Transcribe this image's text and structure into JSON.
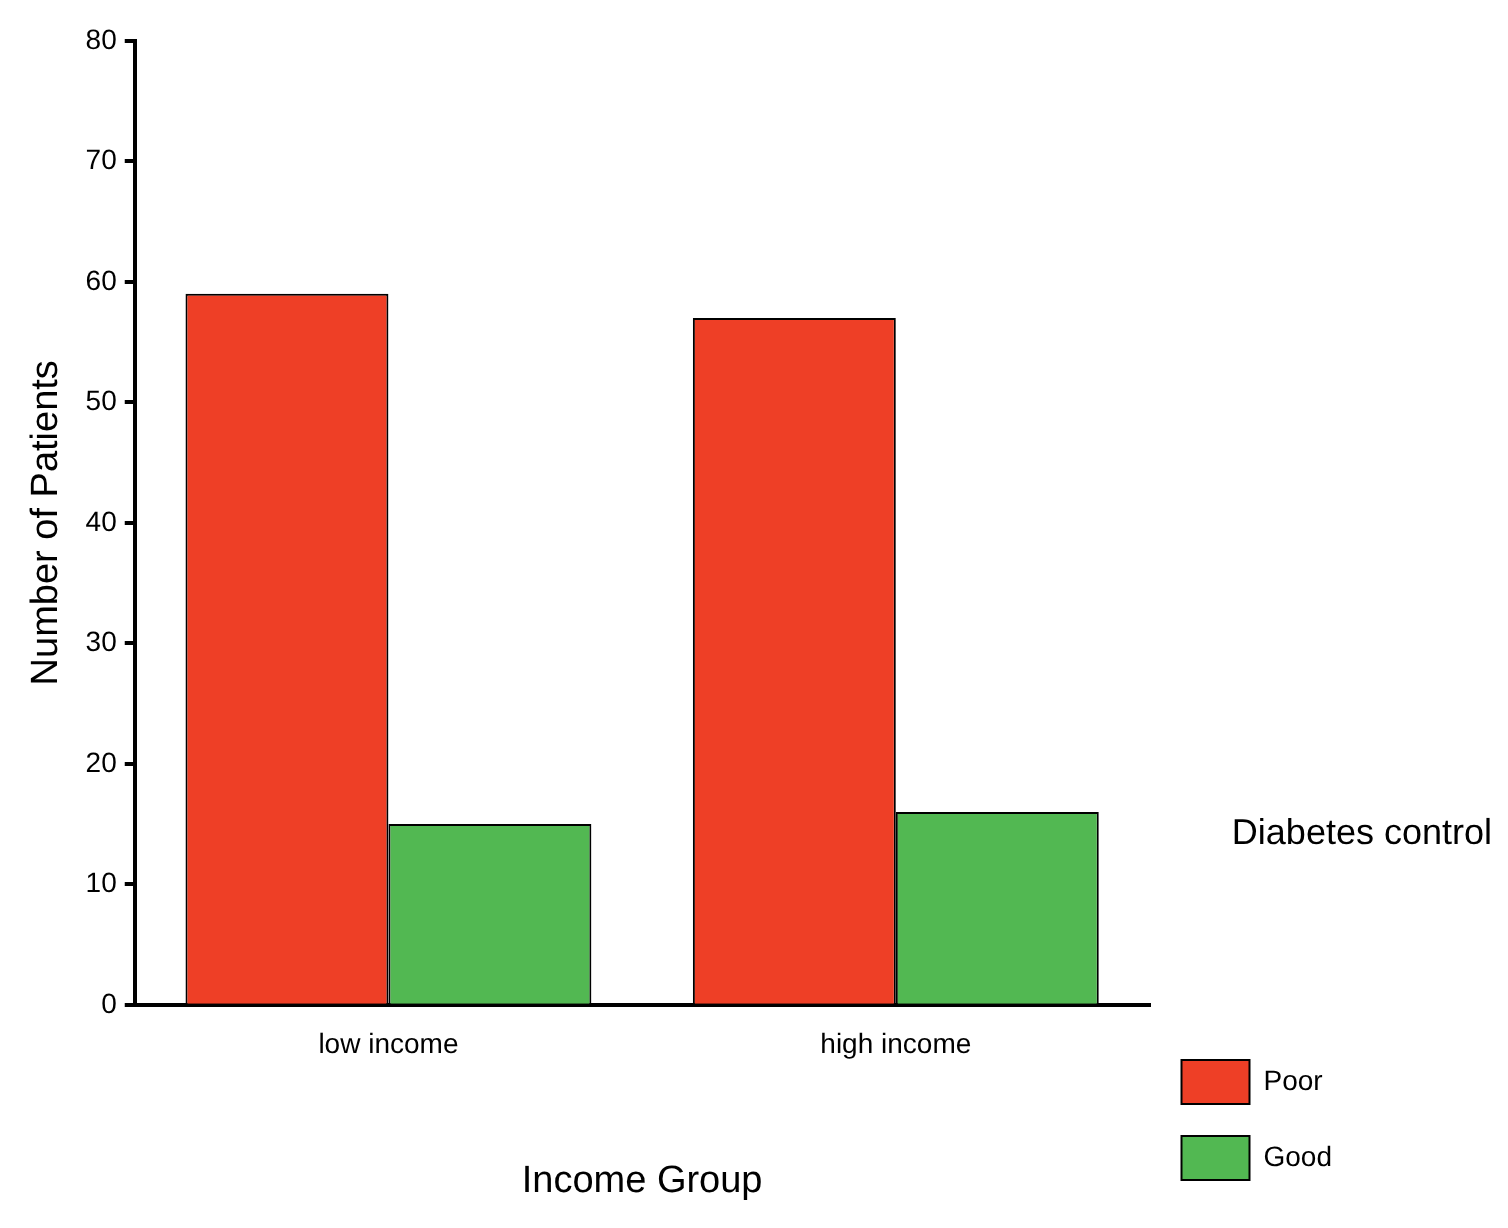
{
  "chart_data": {
    "type": "bar",
    "xlabel": "Income Group",
    "ylabel": "Number of Patients",
    "legend_title": "Diabetes control",
    "categories": [
      "low income",
      "high income"
    ],
    "series": [
      {
        "name": "Poor",
        "color": "#ee3f26",
        "values": [
          59,
          57
        ]
      },
      {
        "name": "Good",
        "color": "#52b852",
        "values": [
          15,
          16
        ]
      }
    ],
    "ylim": [
      0,
      80
    ],
    "yticks": [
      0,
      10,
      20,
      30,
      40,
      50,
      60,
      70,
      80
    ],
    "grid": false,
    "legend": "right"
  }
}
